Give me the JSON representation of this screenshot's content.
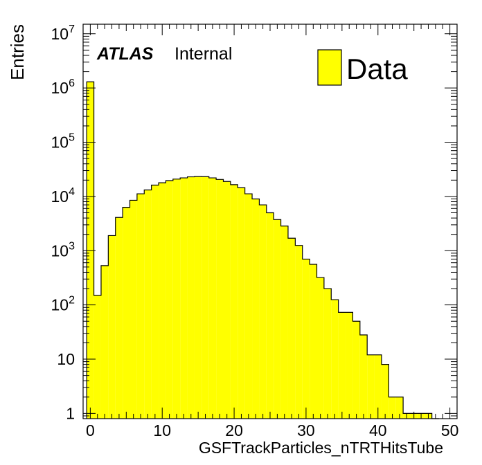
{
  "chart_data": {
    "type": "bar",
    "scale_y": "log",
    "xlabel": "GSFTrackParticles_nTRTHitsTube",
    "ylabel": "Entries",
    "xlim": [
      -1,
      51
    ],
    "ylim": [
      0.8,
      15000000
    ],
    "bin_width": 1,
    "bin_edges": [
      -0.5,
      0.5,
      1.5,
      2.5,
      3.5,
      4.5,
      5.5,
      6.5,
      7.5,
      8.5,
      9.5,
      10.5,
      11.5,
      12.5,
      13.5,
      14.5,
      15.5,
      16.5,
      17.5,
      18.5,
      19.5,
      20.5,
      21.5,
      22.5,
      23.5,
      24.5,
      25.5,
      26.5,
      27.5,
      28.5,
      29.5,
      30.5,
      31.5,
      32.5,
      33.5,
      34.5,
      35.5,
      36.5,
      37.5,
      38.5,
      39.5,
      40.5,
      41.5,
      42.5,
      43.5,
      44.5,
      45.5,
      46.5,
      47.5,
      48.5
    ],
    "values": [
      1300000,
      150,
      530,
      1900,
      4100,
      6300,
      8500,
      11200,
      13200,
      16200,
      17900,
      19600,
      20900,
      22000,
      23000,
      23300,
      23200,
      22000,
      20600,
      18900,
      16500,
      14500,
      11200,
      9000,
      7000,
      5000,
      3750,
      2850,
      1700,
      1250,
      700,
      560,
      320,
      200,
      125,
      73,
      73,
      50,
      28,
      12,
      12,
      8,
      2,
      2,
      1,
      1,
      1,
      1,
      0
    ],
    "xticks": [
      "0",
      "10",
      "20",
      "30",
      "40",
      "50"
    ],
    "yticks": [
      {
        "value": 1,
        "base": "1",
        "exp": ""
      },
      {
        "value": 10,
        "base": "10",
        "exp": ""
      },
      {
        "value": 100,
        "base": "10",
        "exp": "2"
      },
      {
        "value": 1000,
        "base": "10",
        "exp": "3"
      },
      {
        "value": 10000,
        "base": "10",
        "exp": "4"
      },
      {
        "value": 100000,
        "base": "10",
        "exp": "5"
      },
      {
        "value": 1000000,
        "base": "10",
        "exp": "6"
      },
      {
        "value": 10000000,
        "base": "10",
        "exp": "7"
      }
    ],
    "fill_color": "#ffff00",
    "line_color": "#000000",
    "legend": {
      "label": "Data",
      "position": "top-right"
    },
    "annotation": {
      "bold": "ATLAS",
      "normal": "Internal",
      "position": "top-left"
    }
  }
}
